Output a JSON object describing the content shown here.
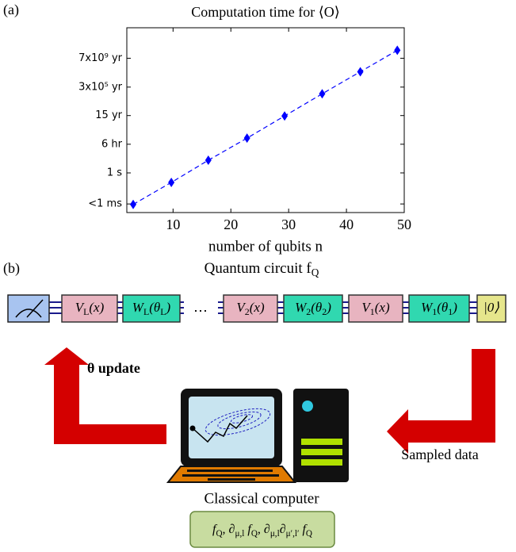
{
  "panel_labels": [
    "(a)",
    "(b)"
  ],
  "chart_data": {
    "type": "line",
    "title": "Computation time for ⟨O⟩",
    "x_label": "number of qubits n",
    "x": [
      3.1,
      9.7,
      16.1,
      22.8,
      29.3,
      35.8,
      42.4,
      48.8
    ],
    "series": [
      {
        "color": "#0000ff",
        "values": [
          1.7e-05,
          0.036,
          82,
          180000,
          410000000,
          910000000000,
          2000000000000000.0,
          3.5e+18
        ]
      }
    ],
    "y_scale": "log",
    "line_style": "dashed",
    "marker": "diamond",
    "xlim": [
      2,
      50
    ],
    "xticks": [
      10,
      20,
      30,
      40,
      50
    ],
    "ylim": [
      1e-06,
      9e+21
    ],
    "yticks": [
      {
        "value": 2e-05,
        "label": "<1 ms"
      },
      {
        "value": 1,
        "label": "1 s"
      },
      {
        "value": 21600,
        "label": "6 hr"
      },
      {
        "value": 470000000,
        "label": "15 yr"
      },
      {
        "value": 9500000000000.0,
        "label": "3x10⁵ yr"
      },
      {
        "value": 2.2e+17,
        "label": "7x10⁹ yr"
      }
    ]
  },
  "diagram": {
    "title": [
      "Quantum circuit f",
      "Q"
    ],
    "gates": [
      [
        "V",
        "L",
        "(x)"
      ],
      [
        "W",
        "L",
        "(θ",
        "L",
        ")"
      ],
      [
        "V",
        "2",
        "(x)"
      ],
      [
        "W",
        "2",
        "(θ",
        "2",
        ")"
      ],
      [
        "V",
        "1",
        "(x)"
      ],
      [
        "W",
        "1",
        "(θ",
        "1",
        ")"
      ],
      [
        "|0⟩"
      ]
    ],
    "ellipsis": "⋯",
    "update_label": "θ update",
    "sampled_label": "Sampled data",
    "computer_label": "Classical computer",
    "outputs": [
      "f",
      "Q",
      ", ∂",
      "μ,l",
      " f",
      "Q",
      ", ∂",
      "μ,l",
      "∂",
      "μ′,l′",
      " f",
      "Q"
    ]
  }
}
